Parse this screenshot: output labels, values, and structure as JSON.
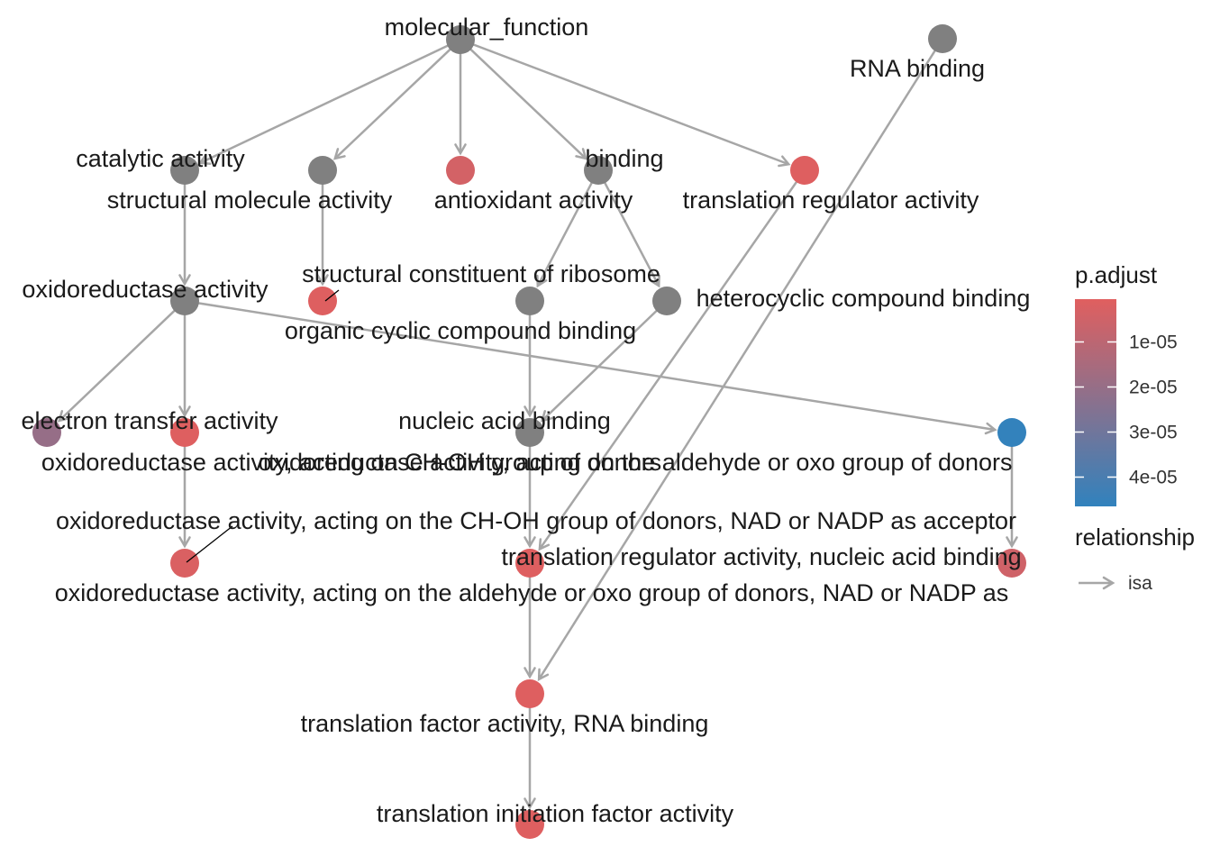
{
  "colors": {
    "gray": "#808080",
    "low": "#e05f5f",
    "high": "#3182bd",
    "edge": "#a6a6a6"
  },
  "nodes": [
    {
      "id": "molecular_function",
      "label": "molecular_function",
      "color_kind": "gray"
    },
    {
      "id": "rna_binding",
      "label": "RNA binding",
      "color_kind": "gray"
    },
    {
      "id": "catalytic_activity",
      "label": "catalytic activity",
      "color_kind": "gray"
    },
    {
      "id": "structural_molecule_activity",
      "label": "structural molecule activity",
      "color_kind": "gray"
    },
    {
      "id": "antioxidant_activity",
      "label": "antioxidant activity",
      "color_kind": "padj",
      "p_adjust": 4e-06
    },
    {
      "id": "binding",
      "label": "binding",
      "color_kind": "gray"
    },
    {
      "id": "translation_regulator_activity",
      "label": "translation regulator activity",
      "color_kind": "padj",
      "p_adjust": 1e-06
    },
    {
      "id": "oxidoreductase_activity",
      "label": "oxidoreductase activity",
      "color_kind": "gray"
    },
    {
      "id": "structural_constituent_of_ribosome",
      "label": "structural constituent of ribosome",
      "color_kind": "padj",
      "p_adjust": 1e-06
    },
    {
      "id": "organic_cyclic_compound_binding",
      "label": "organic cyclic compound binding",
      "color_kind": "gray"
    },
    {
      "id": "heterocyclic_compound_binding",
      "label": "heterocyclic compound binding",
      "color_kind": "gray"
    },
    {
      "id": "electron_transfer_activity",
      "label": "electron transfer activity",
      "color_kind": "padj",
      "p_adjust": 2e-05
    },
    {
      "id": "ox_ch_oh",
      "label": "oxidoreductase activity, acting on CH-OH group of donors",
      "color_kind": "padj",
      "p_adjust": 1e-06
    },
    {
      "id": "nucleic_acid_binding",
      "label": "nucleic acid binding",
      "color_kind": "gray"
    },
    {
      "id": "ox_aldehyde",
      "label": "oxidoreductase activity, acting on the aldehyde or oxo group of donors",
      "color_kind": "padj",
      "p_adjust": 4.6e-05
    },
    {
      "id": "ox_ch_oh_nad",
      "label": "oxidoreductase activity, acting on the CH-OH group of donors, NAD or NADP as acceptor",
      "color_kind": "padj",
      "p_adjust": 2e-06
    },
    {
      "id": "tra_reg_nucleic",
      "label": "translation regulator activity, nucleic acid binding",
      "color_kind": "padj",
      "p_adjust": 1e-06
    },
    {
      "id": "ox_aldehyde_nad",
      "label": "oxidoreductase activity, acting on the aldehyde or oxo group of donors, NAD or NADP as",
      "color_kind": "padj",
      "p_adjust": 5e-06
    },
    {
      "id": "translation_factor_rna",
      "label": "translation factor activity, RNA binding",
      "color_kind": "padj",
      "p_adjust": 1e-06
    },
    {
      "id": "translation_initiation",
      "label": "translation initiation factor activity",
      "color_kind": "padj",
      "p_adjust": 1e-06
    }
  ],
  "edges": [
    {
      "from": "molecular_function",
      "to": "catalytic_activity"
    },
    {
      "from": "molecular_function",
      "to": "structural_molecule_activity"
    },
    {
      "from": "molecular_function",
      "to": "antioxidant_activity"
    },
    {
      "from": "molecular_function",
      "to": "binding"
    },
    {
      "from": "molecular_function",
      "to": "translation_regulator_activity"
    },
    {
      "from": "catalytic_activity",
      "to": "oxidoreductase_activity"
    },
    {
      "from": "structural_molecule_activity",
      "to": "structural_constituent_of_ribosome"
    },
    {
      "from": "binding",
      "to": "organic_cyclic_compound_binding"
    },
    {
      "from": "binding",
      "to": "heterocyclic_compound_binding"
    },
    {
      "from": "oxidoreductase_activity",
      "to": "electron_transfer_activity"
    },
    {
      "from": "oxidoreductase_activity",
      "to": "ox_ch_oh"
    },
    {
      "from": "oxidoreductase_activity",
      "to": "ox_aldehyde"
    },
    {
      "from": "organic_cyclic_compound_binding",
      "to": "nucleic_acid_binding"
    },
    {
      "from": "heterocyclic_compound_binding",
      "to": "nucleic_acid_binding"
    },
    {
      "from": "ox_ch_oh",
      "to": "ox_ch_oh_nad"
    },
    {
      "from": "ox_aldehyde",
      "to": "ox_aldehyde_nad"
    },
    {
      "from": "nucleic_acid_binding",
      "to": "tra_reg_nucleic"
    },
    {
      "from": "translation_regulator_activity",
      "to": "tra_reg_nucleic"
    },
    {
      "from": "tra_reg_nucleic",
      "to": "translation_factor_rna"
    },
    {
      "from": "rna_binding",
      "to": "translation_factor_rna"
    },
    {
      "from": "translation_factor_rna",
      "to": "translation_initiation"
    }
  ],
  "legend": {
    "color_title": "p.adjust",
    "color_ticks": [
      {
        "label": "1e-05",
        "value": 1e-05
      },
      {
        "label": "2e-05",
        "value": 2e-05
      },
      {
        "label": "3e-05",
        "value": 3e-05
      },
      {
        "label": "4e-05",
        "value": 4e-05
      }
    ],
    "color_range": [
      5e-07,
      4.65e-05
    ],
    "edge_title": "relationship",
    "edge_key": "isa"
  }
}
